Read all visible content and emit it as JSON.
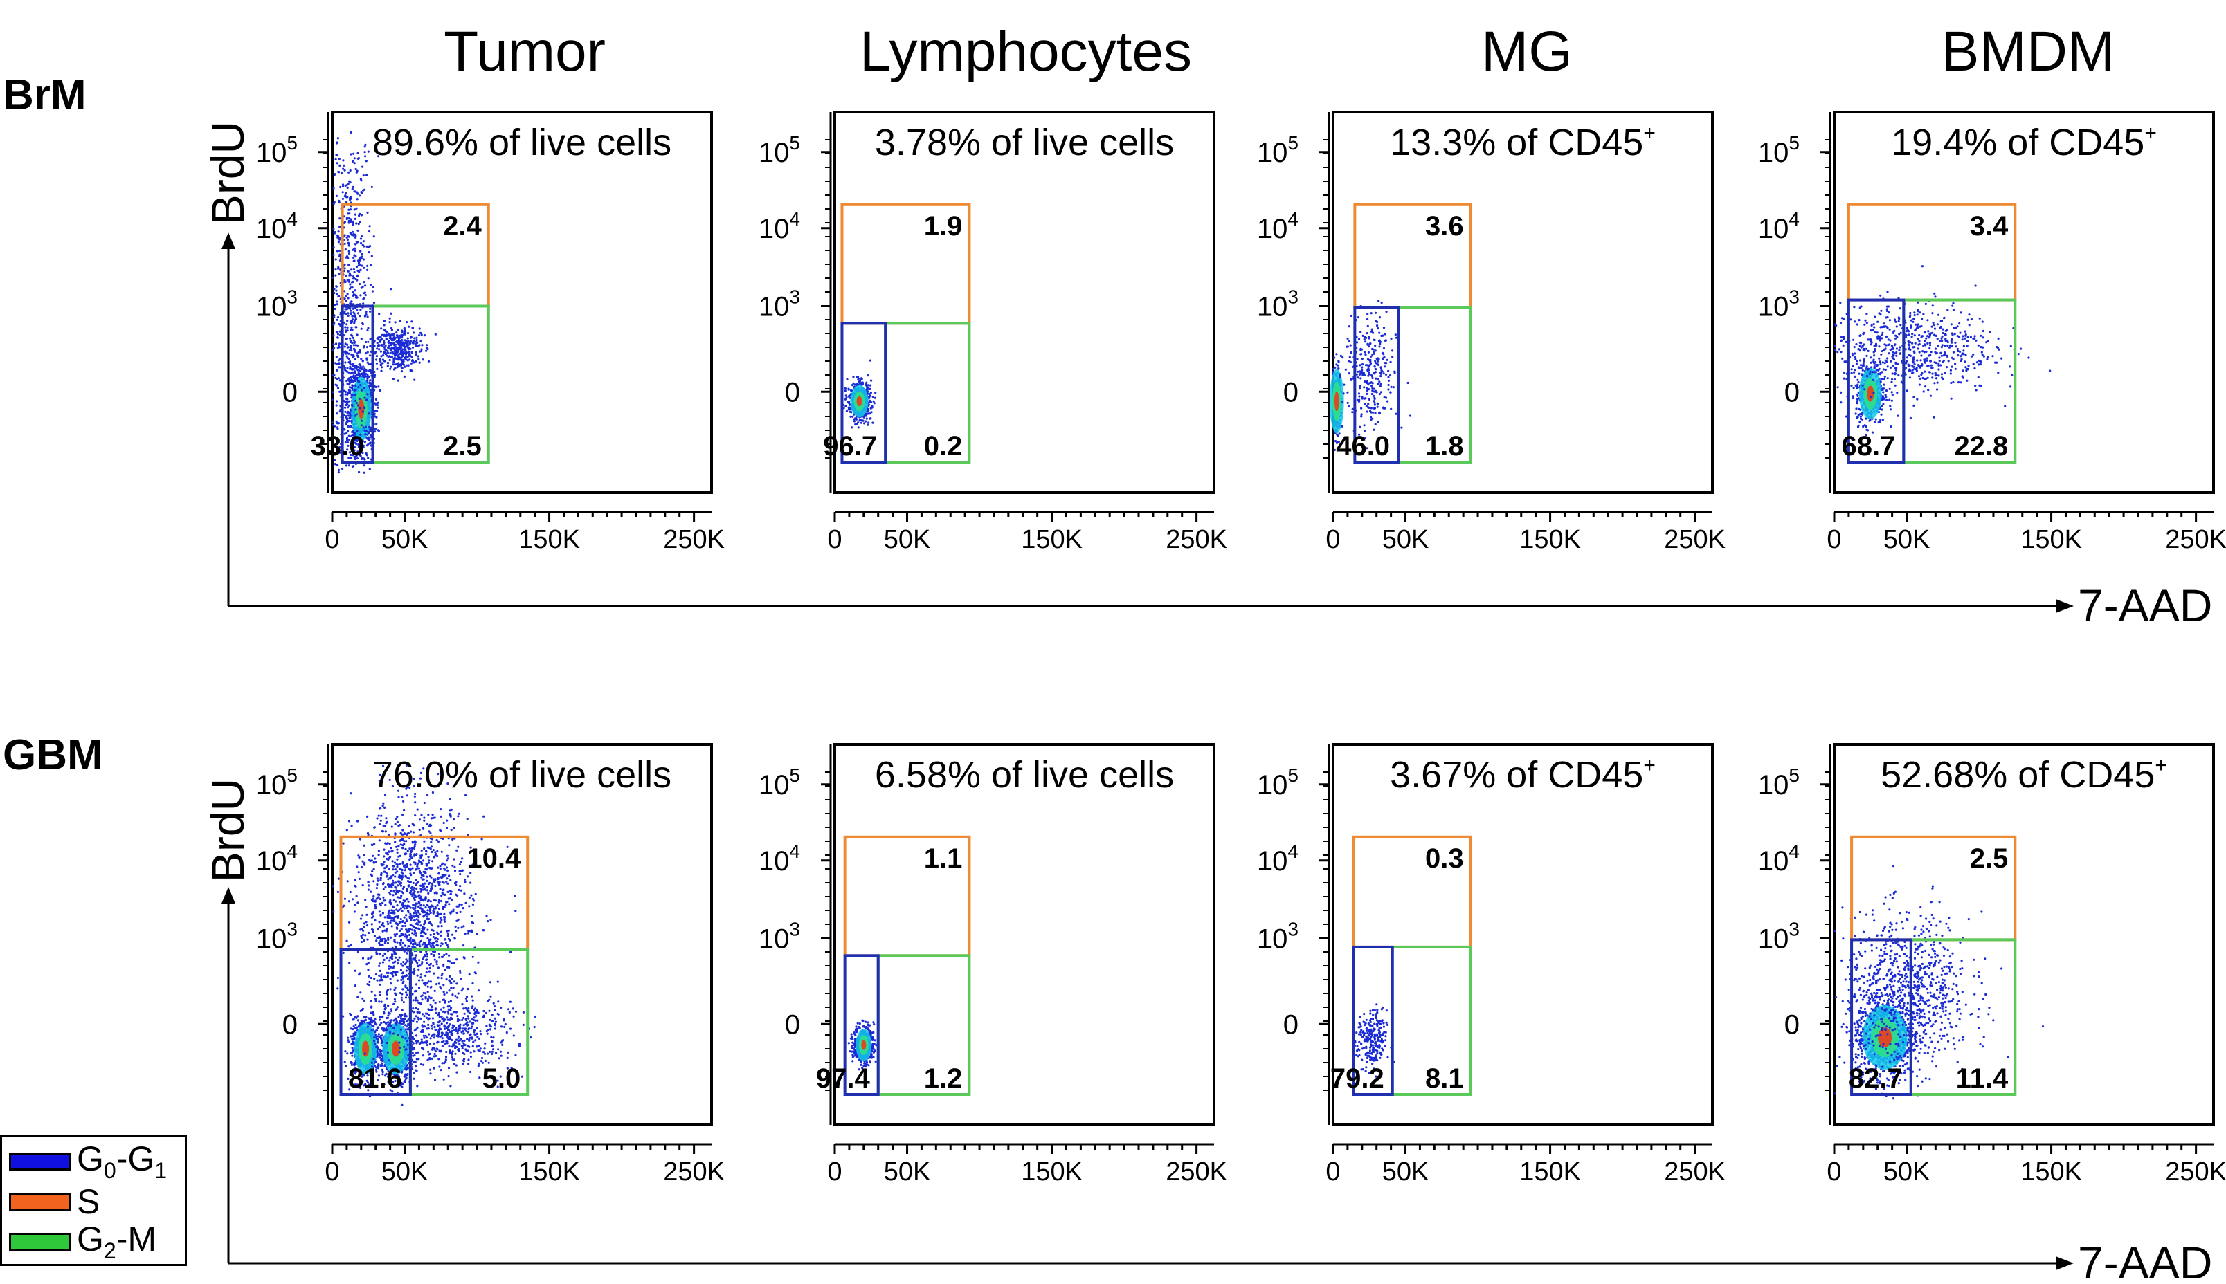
{
  "colors": {
    "s_gate": "#ee8a33",
    "g1_gate": "#1f2fb0",
    "g2m_gate": "#5bc85a",
    "dots": "#1b2bd6",
    "axis": "#000000"
  },
  "columns": [
    "Tumor",
    "Lymphocytes",
    "MG",
    "BMDM"
  ],
  "rows": [
    "BrM",
    "GBM"
  ],
  "y_axis_label": "BrdU",
  "x_axis_label": "7-AAD",
  "x_ticks": [
    "0",
    "50K",
    "150K",
    "250K"
  ],
  "y_ticks": [
    {
      "base": "10",
      "exp": "5"
    },
    {
      "base": "10",
      "exp": "4"
    },
    {
      "base": "10",
      "exp": "3"
    },
    {
      "base": "0",
      "exp": ""
    }
  ],
  "legend": [
    {
      "base": "G",
      "sub": "0",
      "mid": "-G",
      "sub2": "1",
      "tail": "",
      "color": "#1010e0"
    },
    {
      "base": "S",
      "sub": "",
      "mid": "",
      "sub2": "",
      "tail": "",
      "color": "#f2641e"
    },
    {
      "base": "G",
      "sub": "2",
      "mid": "-M",
      "sub2": "",
      "tail": "",
      "color": "#2fc83a"
    }
  ],
  "chart_data": [
    {
      "type": "scatter",
      "row": "BrM",
      "title": "89.6% of live cells",
      "sup": "",
      "column": "Tumor",
      "xlabel": "7-AAD",
      "ylabel": "BrdU",
      "gates": {
        "S": "2.4",
        "G0-G1": "33.0",
        "G2-M": "2.5"
      },
      "gate_x": [
        7000,
        28000,
        108000
      ],
      "gate_y_split": 1000,
      "gate_y_top": 20000,
      "clusters": [
        {
          "x": 20000,
          "y": 0.22,
          "sx": 4500,
          "sy": 0.05,
          "n": 900,
          "dense": 1
        },
        {
          "x": 12000,
          "y": 0.45,
          "sx": 8000,
          "sy": 0.25,
          "n": 900,
          "dense": 0
        },
        {
          "x": 45000,
          "y": 0.38,
          "sx": 8000,
          "sy": 0.03,
          "n": 400,
          "dense": 0
        }
      ]
    },
    {
      "type": "scatter",
      "row": "BrM",
      "title": "3.78% of live cells",
      "sup": "",
      "column": "Lymphocytes",
      "xlabel": "7-AAD",
      "ylabel": "BrdU",
      "gates": {
        "S": "1.9",
        "G0-G1": "96.7",
        "G2-M": "0.2"
      },
      "gate_x": [
        5000,
        35000,
        93000
      ],
      "gate_y_split": 250,
      "gate_y_top": 20000,
      "clusters": [
        {
          "x": 17000,
          "y": 0.24,
          "sx": 4000,
          "sy": 0.025,
          "n": 500,
          "dense": 1
        }
      ]
    },
    {
      "type": "scatter",
      "row": "BrM",
      "title": "13.3% of CD45",
      "sup": "+",
      "column": "MG",
      "xlabel": "7-AAD",
      "ylabel": "BrdU",
      "gates": {
        "S": "3.6",
        "G0-G1": "46.0",
        "G2-M": "1.8"
      },
      "gate_x": [
        15000,
        45000,
        95000
      ],
      "gate_y_split": 900,
      "gate_y_top": 20000,
      "clusters": [
        {
          "x": 2500,
          "y": 0.24,
          "sx": 1500,
          "sy": 0.05,
          "n": 250,
          "dense": 1
        },
        {
          "x": 26000,
          "y": 0.31,
          "sx": 9000,
          "sy": 0.08,
          "n": 300,
          "dense": 0
        }
      ]
    },
    {
      "type": "scatter",
      "row": "BrM",
      "title": "19.4% of CD45",
      "sup": "+",
      "column": "BMDM",
      "xlabel": "7-AAD",
      "ylabel": "BrdU",
      "gates": {
        "S": "3.4",
        "G0-G1": "68.7",
        "G2-M": "22.8"
      },
      "gate_x": [
        10000,
        48000,
        125000
      ],
      "gate_y_split": 1200,
      "gate_y_top": 20000,
      "clusters": [
        {
          "x": 25000,
          "y": 0.26,
          "sx": 5000,
          "sy": 0.04,
          "n": 400,
          "dense": 1
        },
        {
          "x": 50000,
          "y": 0.38,
          "sx": 30000,
          "sy": 0.06,
          "n": 700,
          "dense": 0
        }
      ]
    },
    {
      "type": "scatter",
      "row": "GBM",
      "title": "76.0% of live cells",
      "sup": "",
      "column": "Tumor",
      "xlabel": "7-AAD",
      "ylabel": "BrdU",
      "gates": {
        "S": "10.4",
        "G0-G1": "81.6",
        "G2-M": "5.0"
      },
      "gate_x": [
        6000,
        54000,
        135000
      ],
      "gate_y_split": 400,
      "gate_y_top": 20000,
      "clusters": [
        {
          "x": 23000,
          "y": 0.2,
          "sx": 5000,
          "sy": 0.04,
          "n": 700,
          "dense": 1
        },
        {
          "x": 44000,
          "y": 0.2,
          "sx": 6000,
          "sy": 0.04,
          "n": 700,
          "dense": 1
        },
        {
          "x": 55000,
          "y": 0.55,
          "sx": 20000,
          "sy": 0.15,
          "n": 1600,
          "dense": 0
        },
        {
          "x": 85000,
          "y": 0.24,
          "sx": 20000,
          "sy": 0.05,
          "n": 500,
          "dense": 0
        }
      ]
    },
    {
      "type": "scatter",
      "row": "GBM",
      "title": "6.58% of live cells",
      "sup": "",
      "column": "Lymphocytes",
      "xlabel": "7-AAD",
      "ylabel": "BrdU",
      "gates": {
        "S": "1.1",
        "G0-G1": "97.4",
        "G2-M": "1.2"
      },
      "gate_x": [
        7000,
        30000,
        93000
      ],
      "gate_y_split": 250,
      "gate_y_top": 20000,
      "clusters": [
        {
          "x": 20000,
          "y": 0.21,
          "sx": 3500,
          "sy": 0.025,
          "n": 450,
          "dense": 1
        }
      ]
    },
    {
      "type": "scatter",
      "row": "GBM",
      "title": "3.67% of CD45",
      "sup": "+",
      "column": "MG",
      "xlabel": "7-AAD",
      "ylabel": "BrdU",
      "gates": {
        "S": "0.3",
        "G0-G1": "79.2",
        "G2-M": "8.1"
      },
      "gate_x": [
        14000,
        41000,
        95000
      ],
      "gate_y_split": 500,
      "gate_y_top": 20000,
      "clusters": [
        {
          "x": 27000,
          "y": 0.22,
          "sx": 5000,
          "sy": 0.04,
          "n": 250,
          "dense": 0
        }
      ]
    },
    {
      "type": "scatter",
      "row": "GBM",
      "title": "52.68% of CD45",
      "sup": "+",
      "column": "BMDM",
      "xlabel": "7-AAD",
      "ylabel": "BrdU",
      "gates": {
        "S": "2.5",
        "G0-G1": "82.7",
        "G2-M": "11.4"
      },
      "gate_x": [
        12000,
        53000,
        125000
      ],
      "gate_y_split": 900,
      "gate_y_top": 20000,
      "clusters": [
        {
          "x": 35000,
          "y": 0.23,
          "sx": 10000,
          "sy": 0.05,
          "n": 900,
          "dense": 1
        },
        {
          "x": 50000,
          "y": 0.35,
          "sx": 22000,
          "sy": 0.1,
          "n": 900,
          "dense": 0
        }
      ]
    }
  ]
}
